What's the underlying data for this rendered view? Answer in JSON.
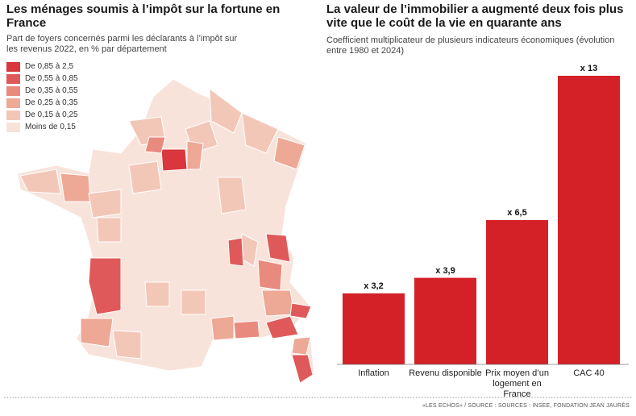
{
  "chart_data": [
    {
      "type": "map",
      "title": "Les ménages soumis à l’impôt sur la fortune en France",
      "subtitle": "Part de foyers concernés parmi les déclarants à l’impôt sur les revenus 2022, en % par département",
      "legend": [
        {
          "label": "De 0,85 à 2,5",
          "color": "#d9363e"
        },
        {
          "label": "De 0,55 à 0,85",
          "color": "#e0595a"
        },
        {
          "label": "De 0,35 à 0,55",
          "color": "#e98a7e"
        },
        {
          "label": "De 0,25 à 0,35",
          "color": "#eda896"
        },
        {
          "label": "De 0,15 à 0,25",
          "color": "#f3c7b8"
        },
        {
          "label": "Moins de 0,15",
          "color": "#f8e3da"
        }
      ]
    },
    {
      "type": "bar",
      "title": "La valeur de l’immobilier a augmenté deux fois plus vite que le coût de la vie en quarante ans",
      "subtitle": "Coefficient multiplicateur de plusieurs indicateurs économiques (évolution entre 1980 et 2024)",
      "categories": [
        "Inflation",
        "Revenu disponible",
        "Prix moyen d’un logement en France",
        "CAC 40"
      ],
      "values": [
        3.2,
        3.9,
        6.5,
        13
      ],
      "value_labels": [
        "x 3,2",
        "x 3,9",
        "x 6,5",
        "x 13"
      ],
      "color": "#d42027"
    }
  ],
  "source": "«LES ECHOS» / SOURCE : SOURCES : INSEE, FONDATION JEAN JAURÈS"
}
